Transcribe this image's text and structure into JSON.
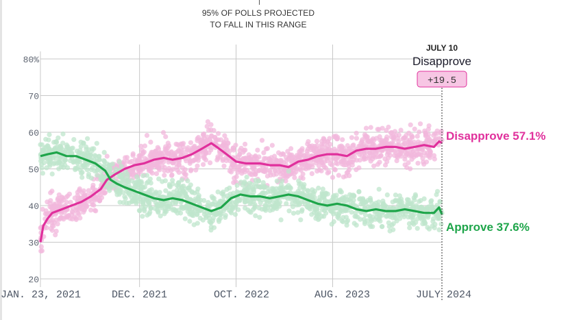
{
  "chart_data": {
    "type": "line",
    "title": "",
    "range_note": [
      "95% OF POLLS PROJECTED",
      "TO FALL IN THIS RANGE"
    ],
    "xlabel": "",
    "ylabel": "",
    "ylim": [
      20,
      80
    ],
    "y_ticks": [
      20,
      30,
      40,
      50,
      60,
      70,
      80
    ],
    "y_tick_labels": [
      "20",
      "30",
      "40",
      "50",
      "60",
      "70",
      "80%"
    ],
    "x_domain": [
      "2021-01-23",
      "2024-07-10"
    ],
    "x_ticks": [
      {
        "date": "2021-01-23",
        "label": "JAN. 23, 2021"
      },
      {
        "date": "2021-12-01",
        "label": "DEC. 2021"
      },
      {
        "date": "2022-10-01",
        "label": "OCT. 2022"
      },
      {
        "date": "2023-08-01",
        "label": "AUG. 2023"
      },
      {
        "date": "2024-07-10",
        "label": "JULY 2024"
      }
    ],
    "grid": true,
    "series": [
      {
        "name": "Disapprove",
        "color": "#e0309c",
        "band_color": "#f2b8dc",
        "end_label": "Disapprove 57.1%",
        "end_value": 57.1,
        "points": [
          [
            "2021-01-23",
            30.0
          ],
          [
            "2021-02-01",
            34.5
          ],
          [
            "2021-02-15",
            36.5
          ],
          [
            "2021-03-01",
            38.0
          ],
          [
            "2021-04-01",
            39.0
          ],
          [
            "2021-05-01",
            40.0
          ],
          [
            "2021-06-01",
            41.0
          ],
          [
            "2021-07-01",
            42.5
          ],
          [
            "2021-08-01",
            44.5
          ],
          [
            "2021-08-20",
            47.0
          ],
          [
            "2021-09-15",
            48.5
          ],
          [
            "2021-10-15",
            50.0
          ],
          [
            "2021-11-15",
            51.0
          ],
          [
            "2021-12-15",
            51.5
          ],
          [
            "2022-01-15",
            52.5
          ],
          [
            "2022-02-15",
            53.0
          ],
          [
            "2022-03-15",
            52.5
          ],
          [
            "2022-04-15",
            53.0
          ],
          [
            "2022-05-15",
            54.0
          ],
          [
            "2022-06-15",
            55.5
          ],
          [
            "2022-07-15",
            57.0
          ],
          [
            "2022-08-01",
            56.0
          ],
          [
            "2022-09-01",
            54.0
          ],
          [
            "2022-10-01",
            52.0
          ],
          [
            "2022-11-01",
            51.5
          ],
          [
            "2022-12-15",
            51.5
          ],
          [
            "2023-01-15",
            51.0
          ],
          [
            "2023-02-15",
            51.0
          ],
          [
            "2023-03-15",
            50.5
          ],
          [
            "2023-04-15",
            52.0
          ],
          [
            "2023-05-15",
            52.5
          ],
          [
            "2023-06-15",
            53.5
          ],
          [
            "2023-07-15",
            54.0
          ],
          [
            "2023-08-15",
            54.0
          ],
          [
            "2023-09-15",
            53.5
          ],
          [
            "2023-10-15",
            55.0
          ],
          [
            "2023-11-15",
            55.5
          ],
          [
            "2023-12-15",
            55.5
          ],
          [
            "2024-01-15",
            56.0
          ],
          [
            "2024-02-15",
            56.0
          ],
          [
            "2024-03-15",
            55.5
          ],
          [
            "2024-04-15",
            56.0
          ],
          [
            "2024-05-15",
            56.5
          ],
          [
            "2024-06-15",
            56.0
          ],
          [
            "2024-07-01",
            57.5
          ],
          [
            "2024-07-10",
            57.1
          ]
        ]
      },
      {
        "name": "Approve",
        "color": "#1ea54a",
        "band_color": "#bfe6cc",
        "end_label": "Approve 37.6%",
        "end_value": 37.6,
        "points": [
          [
            "2021-01-23",
            53.5
          ],
          [
            "2021-02-15",
            54.0
          ],
          [
            "2021-03-15",
            54.5
          ],
          [
            "2021-04-15",
            53.5
          ],
          [
            "2021-05-15",
            53.5
          ],
          [
            "2021-06-15",
            52.5
          ],
          [
            "2021-07-15",
            51.5
          ],
          [
            "2021-08-15",
            49.5
          ],
          [
            "2021-09-01",
            47.0
          ],
          [
            "2021-09-20",
            46.0
          ],
          [
            "2021-10-15",
            45.0
          ],
          [
            "2021-11-15",
            44.0
          ],
          [
            "2021-12-15",
            43.0
          ],
          [
            "2022-01-15",
            42.0
          ],
          [
            "2022-02-15",
            41.5
          ],
          [
            "2022-03-15",
            42.0
          ],
          [
            "2022-04-15",
            41.5
          ],
          [
            "2022-05-15",
            40.5
          ],
          [
            "2022-06-15",
            39.5
          ],
          [
            "2022-07-15",
            38.5
          ],
          [
            "2022-08-15",
            39.5
          ],
          [
            "2022-09-15",
            42.0
          ],
          [
            "2022-10-15",
            43.0
          ],
          [
            "2022-11-15",
            42.5
          ],
          [
            "2022-12-15",
            42.5
          ],
          [
            "2023-01-15",
            42.0
          ],
          [
            "2023-02-15",
            42.5
          ],
          [
            "2023-03-15",
            43.0
          ],
          [
            "2023-04-15",
            42.5
          ],
          [
            "2023-05-15",
            41.5
          ],
          [
            "2023-06-15",
            40.5
          ],
          [
            "2023-07-15",
            40.0
          ],
          [
            "2023-08-15",
            40.5
          ],
          [
            "2023-09-15",
            40.0
          ],
          [
            "2023-10-15",
            39.0
          ],
          [
            "2023-11-15",
            38.5
          ],
          [
            "2023-12-15",
            39.0
          ],
          [
            "2024-01-15",
            38.5
          ],
          [
            "2024-02-15",
            38.5
          ],
          [
            "2024-03-15",
            39.0
          ],
          [
            "2024-04-15",
            38.5
          ],
          [
            "2024-05-15",
            38.0
          ],
          [
            "2024-06-15",
            38.0
          ],
          [
            "2024-07-01",
            39.5
          ],
          [
            "2024-07-10",
            37.6
          ]
        ]
      }
    ],
    "poll_cloud": {
      "note": "Illustrative only: individual poll dots are not recoverable from the screenshot; synthetic scatter approximates the visual density and spread.",
      "approximate_spread_pct": 7
    },
    "annotation": {
      "date_label": "JULY 10",
      "label": "Disapprove",
      "value": "+19.5",
      "box_color": "#f7c6e4",
      "box_border": "#e0309c"
    }
  }
}
